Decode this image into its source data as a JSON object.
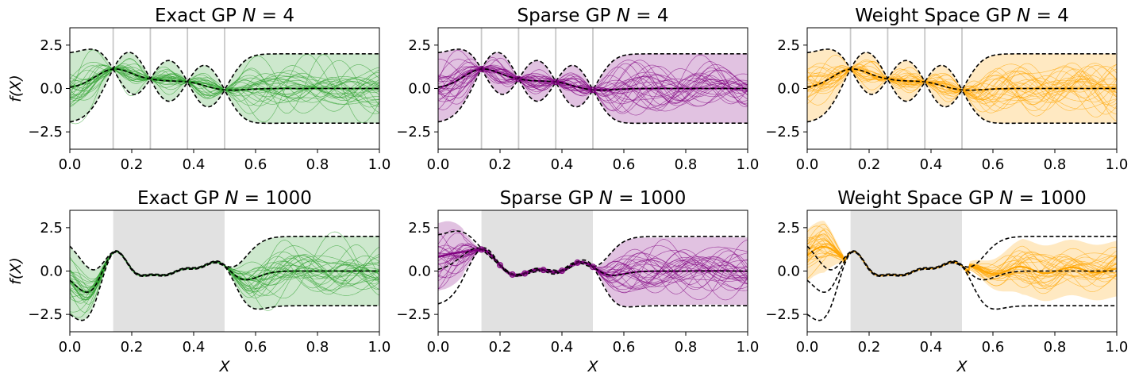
{
  "chart_data": [
    {
      "type": "line",
      "title": "Exact GP N = 4",
      "title_parts": {
        "prefix": "Exact GP ",
        "var": "N",
        "eq": " = ",
        "num": "4"
      },
      "ylabel": "f(X)",
      "xlabel": "",
      "xlim": [
        0,
        1
      ],
      "ylim": [
        -3.5,
        3.5
      ],
      "color": "#2ca02c",
      "observations": [
        {
          "x": 0.14,
          "y": 1.12
        },
        {
          "x": 0.26,
          "y": 0.55
        },
        {
          "x": 0.38,
          "y": 0.38
        },
        {
          "x": 0.5,
          "y": -0.08
        }
      ],
      "highlight": "lines",
      "markers": false,
      "ref_band": "exact",
      "posterior": "exact",
      "seed": 11
    },
    {
      "type": "line",
      "title": "Sparse GP N = 4",
      "title_parts": {
        "prefix": "Sparse GP ",
        "var": "N",
        "eq": " = ",
        "num": "4"
      },
      "ylabel": "",
      "xlabel": "",
      "xlim": [
        0,
        1
      ],
      "ylim": [
        -3.5,
        3.5
      ],
      "color": "#800080",
      "observations": [
        {
          "x": 0.14,
          "y": 1.12
        },
        {
          "x": 0.26,
          "y": 0.55
        },
        {
          "x": 0.38,
          "y": 0.38
        },
        {
          "x": 0.5,
          "y": -0.08
        }
      ],
      "highlight": "lines",
      "markers": true,
      "ref_band": "exact",
      "posterior": "exact",
      "seed": 23
    },
    {
      "type": "line",
      "title": "Weight Space GP N = 4",
      "title_parts": {
        "prefix": "Weight Space GP ",
        "var": "N",
        "eq": " = ",
        "num": "4"
      },
      "ylabel": "",
      "xlabel": "",
      "xlim": [
        0,
        1
      ],
      "ylim": [
        -3.5,
        3.5
      ],
      "color": "#ffa500",
      "observations": [
        {
          "x": 0.14,
          "y": 1.12
        },
        {
          "x": 0.26,
          "y": 0.55
        },
        {
          "x": 0.38,
          "y": 0.38
        },
        {
          "x": 0.5,
          "y": -0.08
        }
      ],
      "highlight": "lines",
      "markers": false,
      "ref_band": "exact",
      "posterior": "exact",
      "seed": 37
    },
    {
      "type": "line",
      "title": "Exact GP N = 1000",
      "title_parts": {
        "prefix": "Exact GP ",
        "var": "N",
        "eq": " = ",
        "num": "1000"
      },
      "ylabel": "f(X)",
      "xlabel": "X",
      "xlim": [
        0,
        1
      ],
      "ylim": [
        -3.5,
        3.5
      ],
      "color": "#2ca02c",
      "observations": [
        {
          "x": 0.14,
          "y": 1.05
        },
        {
          "x": 0.16,
          "y": 1.1
        },
        {
          "x": 0.18,
          "y": 0.6
        },
        {
          "x": 0.22,
          "y": -0.2
        },
        {
          "x": 0.26,
          "y": -0.22
        },
        {
          "x": 0.3,
          "y": -0.25
        },
        {
          "x": 0.34,
          "y": -0.05
        },
        {
          "x": 0.38,
          "y": 0.15
        },
        {
          "x": 0.42,
          "y": 0.2
        },
        {
          "x": 0.46,
          "y": 0.5
        },
        {
          "x": 0.5,
          "y": 0.3
        }
      ],
      "highlight": "region",
      "region": [
        0.14,
        0.5
      ],
      "markers": false,
      "ref_band": "exact",
      "posterior": "exact",
      "seed": 41
    },
    {
      "type": "line",
      "title": "Sparse GP N = 1000",
      "title_parts": {
        "prefix": "Sparse GP ",
        "var": "N",
        "eq": " = ",
        "num": "1000"
      },
      "ylabel": "",
      "xlabel": "X",
      "xlim": [
        0,
        1
      ],
      "ylim": [
        -3.5,
        3.5
      ],
      "color": "#800080",
      "observations": [
        {
          "x": 0.14,
          "y": 1.3
        },
        {
          "x": 0.2,
          "y": 0.35
        },
        {
          "x": 0.24,
          "y": -0.2
        },
        {
          "x": 0.28,
          "y": -0.15
        },
        {
          "x": 0.34,
          "y": 0.05
        },
        {
          "x": 0.4,
          "y": 0.02
        },
        {
          "x": 0.45,
          "y": 0.5
        },
        {
          "x": 0.5,
          "y": 0.25
        }
      ],
      "highlight": "region",
      "region": [
        0.14,
        0.5
      ],
      "markers": true,
      "ref_band": "exact",
      "posterior": "sparse",
      "seed": 53
    },
    {
      "type": "line",
      "title": "Weight Space GP N = 1000",
      "title_parts": {
        "prefix": "Weight Space GP ",
        "var": "N",
        "eq": " = ",
        "num": "1000"
      },
      "ylabel": "",
      "xlabel": "X",
      "xlim": [
        0,
        1
      ],
      "ylim": [
        -3.5,
        3.5
      ],
      "color": "#ffa500",
      "observations": [
        {
          "x": 0.14,
          "y": 1.05
        },
        {
          "x": 0.16,
          "y": 1.1
        },
        {
          "x": 0.18,
          "y": 0.6
        },
        {
          "x": 0.22,
          "y": -0.2
        },
        {
          "x": 0.26,
          "y": -0.22
        },
        {
          "x": 0.3,
          "y": -0.25
        },
        {
          "x": 0.34,
          "y": -0.05
        },
        {
          "x": 0.38,
          "y": 0.15
        },
        {
          "x": 0.42,
          "y": 0.2
        },
        {
          "x": 0.46,
          "y": 0.5
        },
        {
          "x": 0.5,
          "y": 0.3
        }
      ],
      "highlight": "region",
      "region": [
        0.14,
        0.5
      ],
      "markers": false,
      "ref_band": "exact",
      "posterior": "weightspace",
      "seed": 67
    }
  ],
  "axes_common": {
    "xticks": [
      0.0,
      0.2,
      0.4,
      0.6,
      0.8,
      1.0
    ],
    "xtick_labels": [
      "0.0",
      "0.2",
      "0.4",
      "0.6",
      "0.8",
      "1.0"
    ],
    "yticks": [
      -2.5,
      0.0,
      2.5
    ],
    "ytick_labels": [
      "−2.5",
      "0.0",
      "2.5"
    ],
    "reference_line_color": "#000000",
    "highlight_color": "#c8c8c8",
    "prior_std": 2.0
  }
}
